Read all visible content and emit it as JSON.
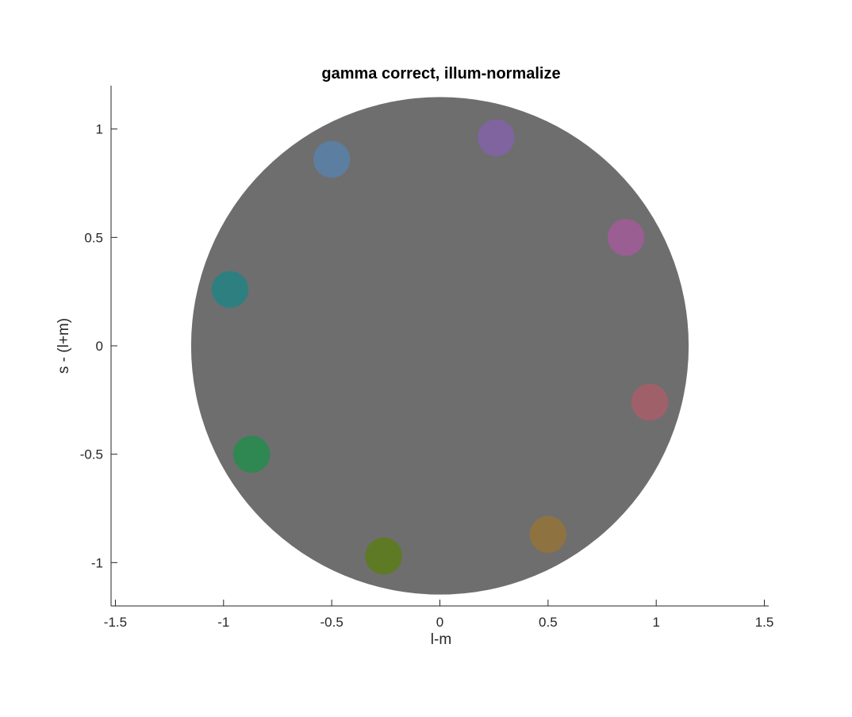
{
  "chart_data": {
    "type": "scatter",
    "title": "gamma correct, illum-normalize",
    "xlabel": "l-m",
    "ylabel": "s - (l+m)",
    "xlim": [
      -1.52,
      1.52
    ],
    "ylim": [
      -1.2,
      1.2
    ],
    "grid": false,
    "legend": "none",
    "xticks": [
      -1.5,
      -1,
      -0.5,
      0,
      0.5,
      1,
      1.5
    ],
    "xtick_labels": [
      "-1.5",
      "-1",
      "-0.5",
      "0",
      "0.5",
      "1",
      "1.5"
    ],
    "yticks": [
      -1,
      -0.5,
      0,
      0.5,
      1
    ],
    "ytick_labels": [
      "-1",
      "-0.5",
      "0",
      "0.5",
      "1"
    ],
    "background_disk": {
      "cx": 0,
      "cy": 0,
      "r": 1.15,
      "color": "#6e6e6e"
    },
    "points": [
      {
        "x": 0.26,
        "y": 0.96,
        "color": "#7f64a0"
      },
      {
        "x": -0.5,
        "y": 0.86,
        "color": "#5c7ea0"
      },
      {
        "x": 0.86,
        "y": 0.5,
        "color": "#9a5e93"
      },
      {
        "x": -0.97,
        "y": 0.26,
        "color": "#2e8080"
      },
      {
        "x": 0.97,
        "y": -0.26,
        "color": "#a0606a"
      },
      {
        "x": -0.87,
        "y": -0.5,
        "color": "#2f8752"
      },
      {
        "x": 0.5,
        "y": -0.87,
        "color": "#8e7341"
      },
      {
        "x": -0.26,
        "y": -0.97,
        "color": "#5e7a25"
      }
    ],
    "point_radius": 0.085
  }
}
